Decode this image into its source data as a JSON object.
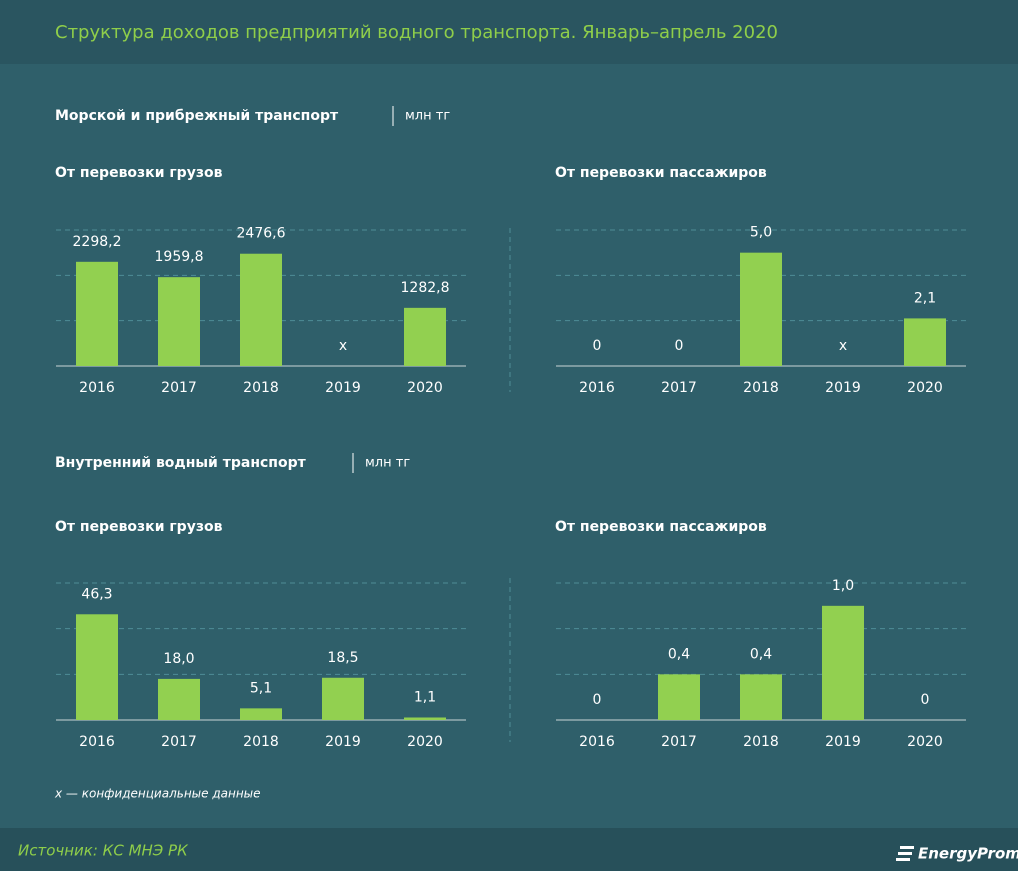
{
  "title": "Структура доходов предприятий водного транспорта. Январь–апрель 2020",
  "sections": [
    {
      "title": "Морской и прибрежный транспорт",
      "unit": "млн тг"
    },
    {
      "title": "Внутренний водный транспорт",
      "unit": "млн тг"
    }
  ],
  "chart_data": [
    {
      "type": "bar",
      "title": "От перевозки грузов",
      "categories": [
        "2016",
        "2017",
        "2018",
        "2019",
        "2020"
      ],
      "values": [
        2298.2,
        1959.8,
        2476.6,
        null,
        1282.8
      ],
      "value_labels": [
        "2298,2",
        "1959,8",
        "2476,6",
        "x",
        "1282,8"
      ],
      "color": "#92d050",
      "ylim": [
        0,
        3000
      ],
      "yticks": [
        0,
        1000,
        2000,
        3000
      ],
      "grid": true
    },
    {
      "type": "bar",
      "title": "От перевозки пассажиров",
      "categories": [
        "2016",
        "2017",
        "2018",
        "2019",
        "2020"
      ],
      "values": [
        0,
        0,
        5.0,
        null,
        2.1
      ],
      "value_labels": [
        "0",
        "0",
        "5,0",
        "x",
        "2,1"
      ],
      "color": "#92d050",
      "ylim": [
        0,
        6
      ],
      "yticks": [
        0,
        2,
        4,
        6
      ],
      "grid": true
    },
    {
      "type": "bar",
      "title": "От перевозки грузов",
      "categories": [
        "2016",
        "2017",
        "2018",
        "2019",
        "2020"
      ],
      "values": [
        46.3,
        18.0,
        5.1,
        18.5,
        1.1
      ],
      "value_labels": [
        "46,3",
        "18,0",
        "5,1",
        "18,5",
        "1,1"
      ],
      "color": "#92d050",
      "ylim": [
        0,
        60
      ],
      "yticks": [
        0,
        20,
        40,
        60
      ],
      "grid": true
    },
    {
      "type": "bar",
      "title": "От перевозки пассажиров",
      "categories": [
        "2016",
        "2017",
        "2018",
        "2019",
        "2020"
      ],
      "values": [
        0,
        0.4,
        0.4,
        1.0,
        0
      ],
      "value_labels": [
        "0",
        "0,4",
        "0,4",
        "1,0",
        "0"
      ],
      "color": "#92d050",
      "ylim": [
        0,
        1.2
      ],
      "yticks": [
        0,
        0.4,
        0.8,
        1.2
      ],
      "grid": true
    }
  ],
  "footnote": "х — конфиденциальные данные",
  "source": "Источник: КС МНЭ РК",
  "logo": "EnergyProm"
}
